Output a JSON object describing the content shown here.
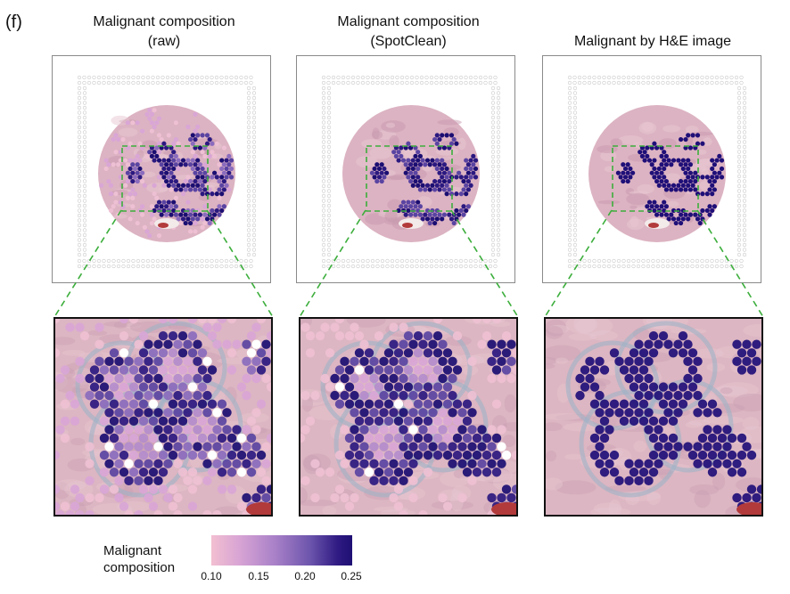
{
  "panel_label": "(f)",
  "columns": [
    {
      "title_line1": "Malignant composition",
      "title_line2": "(raw)"
    },
    {
      "title_line1": "Malignant composition",
      "title_line2": "(SpotClean)"
    },
    {
      "title_line1": "Malignant by H&E image",
      "title_line2": ""
    }
  ],
  "legend": {
    "title_line1": "Malignant",
    "title_line2": "composition",
    "ticks": [
      "0.10",
      "0.15",
      "0.20",
      "0.25"
    ]
  },
  "colors": {
    "low": "#f2bfd1",
    "high": "#1f0f74",
    "tissue": "#d9b2bd",
    "zoom_box": "#3cae3c"
  }
}
